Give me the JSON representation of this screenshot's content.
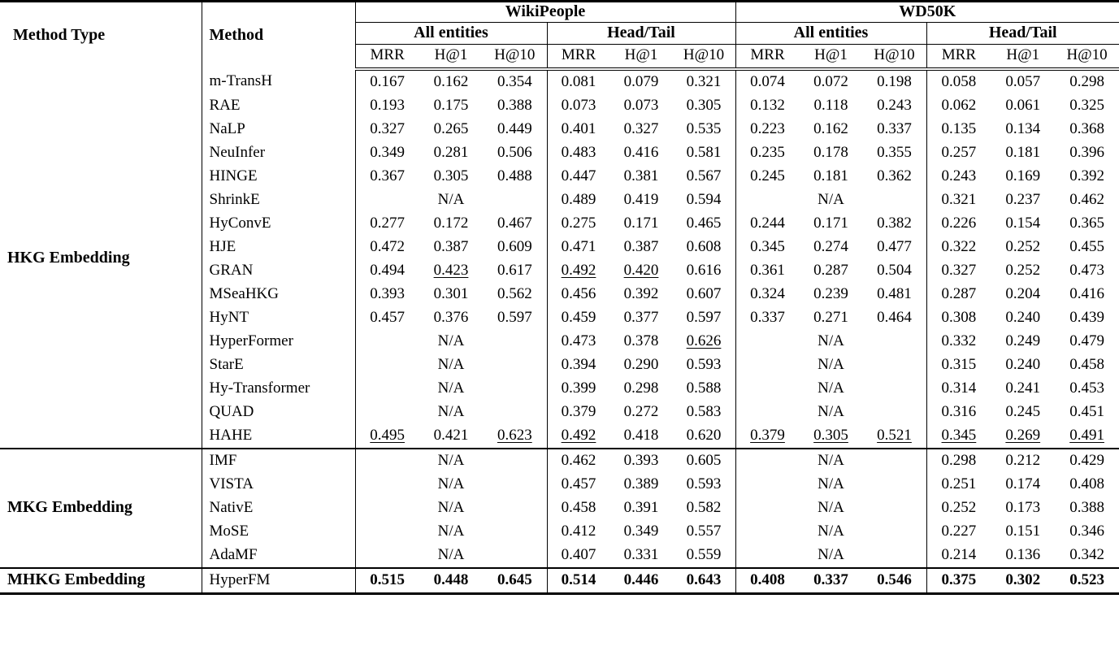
{
  "header": {
    "method_type": "Method Type",
    "method": "Method",
    "datasets": [
      {
        "name": "WikiPeople",
        "subgroups": [
          "All entities",
          "Head/Tail"
        ]
      },
      {
        "name": "WD50K",
        "subgroups": [
          "All entities",
          "Head/Tail"
        ]
      }
    ],
    "metrics": [
      "MRR",
      "H@1",
      "H@10"
    ]
  },
  "na_label": "N/A",
  "sections": [
    {
      "type": "HKG Embedding",
      "rows": [
        {
          "method": "m-TransH",
          "groups": [
            {
              "v": [
                "0.167",
                "0.162",
                "0.354"
              ]
            },
            {
              "v": [
                "0.081",
                "0.079",
                "0.321"
              ]
            },
            {
              "v": [
                "0.074",
                "0.072",
                "0.198"
              ]
            },
            {
              "v": [
                "0.058",
                "0.057",
                "0.298"
              ]
            }
          ]
        },
        {
          "method": "RAE",
          "groups": [
            {
              "v": [
                "0.193",
                "0.175",
                "0.388"
              ]
            },
            {
              "v": [
                "0.073",
                "0.073",
                "0.305"
              ]
            },
            {
              "v": [
                "0.132",
                "0.118",
                "0.243"
              ]
            },
            {
              "v": [
                "0.062",
                "0.061",
                "0.325"
              ]
            }
          ]
        },
        {
          "method": "NaLP",
          "groups": [
            {
              "v": [
                "0.327",
                "0.265",
                "0.449"
              ]
            },
            {
              "v": [
                "0.401",
                "0.327",
                "0.535"
              ]
            },
            {
              "v": [
                "0.223",
                "0.162",
                "0.337"
              ]
            },
            {
              "v": [
                "0.135",
                "0.134",
                "0.368"
              ]
            }
          ]
        },
        {
          "method": "NeuInfer",
          "groups": [
            {
              "v": [
                "0.349",
                "0.281",
                "0.506"
              ]
            },
            {
              "v": [
                "0.483",
                "0.416",
                "0.581"
              ]
            },
            {
              "v": [
                "0.235",
                "0.178",
                "0.355"
              ]
            },
            {
              "v": [
                "0.257",
                "0.181",
                "0.396"
              ]
            }
          ]
        },
        {
          "method": "HINGE",
          "groups": [
            {
              "v": [
                "0.367",
                "0.305",
                "0.488"
              ]
            },
            {
              "v": [
                "0.447",
                "0.381",
                "0.567"
              ]
            },
            {
              "v": [
                "0.245",
                "0.181",
                "0.362"
              ]
            },
            {
              "v": [
                "0.243",
                "0.169",
                "0.392"
              ]
            }
          ]
        },
        {
          "method": "ShrinkE",
          "groups": [
            null,
            {
              "v": [
                "0.489",
                "0.419",
                "0.594"
              ]
            },
            null,
            {
              "v": [
                "0.321",
                "0.237",
                "0.462"
              ]
            }
          ]
        },
        {
          "method": "HyConvE",
          "groups": [
            {
              "v": [
                "0.277",
                "0.172",
                "0.467"
              ]
            },
            {
              "v": [
                "0.275",
                "0.171",
                "0.465"
              ]
            },
            {
              "v": [
                "0.244",
                "0.171",
                "0.382"
              ]
            },
            {
              "v": [
                "0.226",
                "0.154",
                "0.365"
              ]
            }
          ]
        },
        {
          "method": "HJE",
          "groups": [
            {
              "v": [
                "0.472",
                "0.387",
                "0.609"
              ]
            },
            {
              "v": [
                "0.471",
                "0.387",
                "0.608"
              ]
            },
            {
              "v": [
                "0.345",
                "0.274",
                "0.477"
              ]
            },
            {
              "v": [
                "0.322",
                "0.252",
                "0.455"
              ]
            }
          ]
        },
        {
          "method": "GRAN",
          "groups": [
            {
              "v": [
                "0.494",
                "0.423",
                "0.617"
              ],
              "u": [
                0,
                1,
                0
              ]
            },
            {
              "v": [
                "0.492",
                "0.420",
                "0.616"
              ],
              "u": [
                1,
                1,
                0
              ]
            },
            {
              "v": [
                "0.361",
                "0.287",
                "0.504"
              ]
            },
            {
              "v": [
                "0.327",
                "0.252",
                "0.473"
              ]
            }
          ]
        },
        {
          "method": "MSeaHKG",
          "groups": [
            {
              "v": [
                "0.393",
                "0.301",
                "0.562"
              ]
            },
            {
              "v": [
                "0.456",
                "0.392",
                "0.607"
              ]
            },
            {
              "v": [
                "0.324",
                "0.239",
                "0.481"
              ]
            },
            {
              "v": [
                "0.287",
                "0.204",
                "0.416"
              ]
            }
          ]
        },
        {
          "method": "HyNT",
          "groups": [
            {
              "v": [
                "0.457",
                "0.376",
                "0.597"
              ]
            },
            {
              "v": [
                "0.459",
                "0.377",
                "0.597"
              ]
            },
            {
              "v": [
                "0.337",
                "0.271",
                "0.464"
              ]
            },
            {
              "v": [
                "0.308",
                "0.240",
                "0.439"
              ]
            }
          ]
        },
        {
          "method": "HyperFormer",
          "groups": [
            null,
            {
              "v": [
                "0.473",
                "0.378",
                "0.626"
              ],
              "u": [
                0,
                0,
                1
              ]
            },
            null,
            {
              "v": [
                "0.332",
                "0.249",
                "0.479"
              ]
            }
          ]
        },
        {
          "method": "StarE",
          "groups": [
            null,
            {
              "v": [
                "0.394",
                "0.290",
                "0.593"
              ]
            },
            null,
            {
              "v": [
                "0.315",
                "0.240",
                "0.458"
              ]
            }
          ]
        },
        {
          "method": "Hy-Transformer",
          "groups": [
            null,
            {
              "v": [
                "0.399",
                "0.298",
                "0.588"
              ]
            },
            null,
            {
              "v": [
                "0.314",
                "0.241",
                "0.453"
              ]
            }
          ]
        },
        {
          "method": "QUAD",
          "groups": [
            null,
            {
              "v": [
                "0.379",
                "0.272",
                "0.583"
              ]
            },
            null,
            {
              "v": [
                "0.316",
                "0.245",
                "0.451"
              ]
            }
          ]
        },
        {
          "method": "HAHE",
          "groups": [
            {
              "v": [
                "0.495",
                "0.421",
                "0.623"
              ],
              "u": [
                1,
                0,
                1
              ]
            },
            {
              "v": [
                "0.492",
                "0.418",
                "0.620"
              ],
              "u": [
                1,
                0,
                0
              ]
            },
            {
              "v": [
                "0.379",
                "0.305",
                "0.521"
              ],
              "u": [
                1,
                1,
                1
              ]
            },
            {
              "v": [
                "0.345",
                "0.269",
                "0.491"
              ],
              "u": [
                1,
                1,
                1
              ]
            }
          ]
        }
      ]
    },
    {
      "type": "MKG Embedding",
      "rows": [
        {
          "method": "IMF",
          "groups": [
            null,
            {
              "v": [
                "0.462",
                "0.393",
                "0.605"
              ]
            },
            null,
            {
              "v": [
                "0.298",
                "0.212",
                "0.429"
              ]
            }
          ]
        },
        {
          "method": "VISTA",
          "groups": [
            null,
            {
              "v": [
                "0.457",
                "0.389",
                "0.593"
              ]
            },
            null,
            {
              "v": [
                "0.251",
                "0.174",
                "0.408"
              ]
            }
          ]
        },
        {
          "method": "NativE",
          "groups": [
            null,
            {
              "v": [
                "0.458",
                "0.391",
                "0.582"
              ]
            },
            null,
            {
              "v": [
                "0.252",
                "0.173",
                "0.388"
              ]
            }
          ]
        },
        {
          "method": "MoSE",
          "groups": [
            null,
            {
              "v": [
                "0.412",
                "0.349",
                "0.557"
              ]
            },
            null,
            {
              "v": [
                "0.227",
                "0.151",
                "0.346"
              ]
            }
          ]
        },
        {
          "method": "AdaMF",
          "groups": [
            null,
            {
              "v": [
                "0.407",
                "0.331",
                "0.559"
              ]
            },
            null,
            {
              "v": [
                "0.214",
                "0.136",
                "0.342"
              ]
            }
          ]
        }
      ]
    },
    {
      "type": "MHKG Embedding",
      "rows": [
        {
          "method": "HyperFM",
          "bold": true,
          "groups": [
            {
              "v": [
                "0.515",
                "0.448",
                "0.645"
              ]
            },
            {
              "v": [
                "0.514",
                "0.446",
                "0.643"
              ]
            },
            {
              "v": [
                "0.408",
                "0.337",
                "0.546"
              ]
            },
            {
              "v": [
                "0.375",
                "0.302",
                "0.523"
              ]
            }
          ]
        }
      ]
    }
  ]
}
